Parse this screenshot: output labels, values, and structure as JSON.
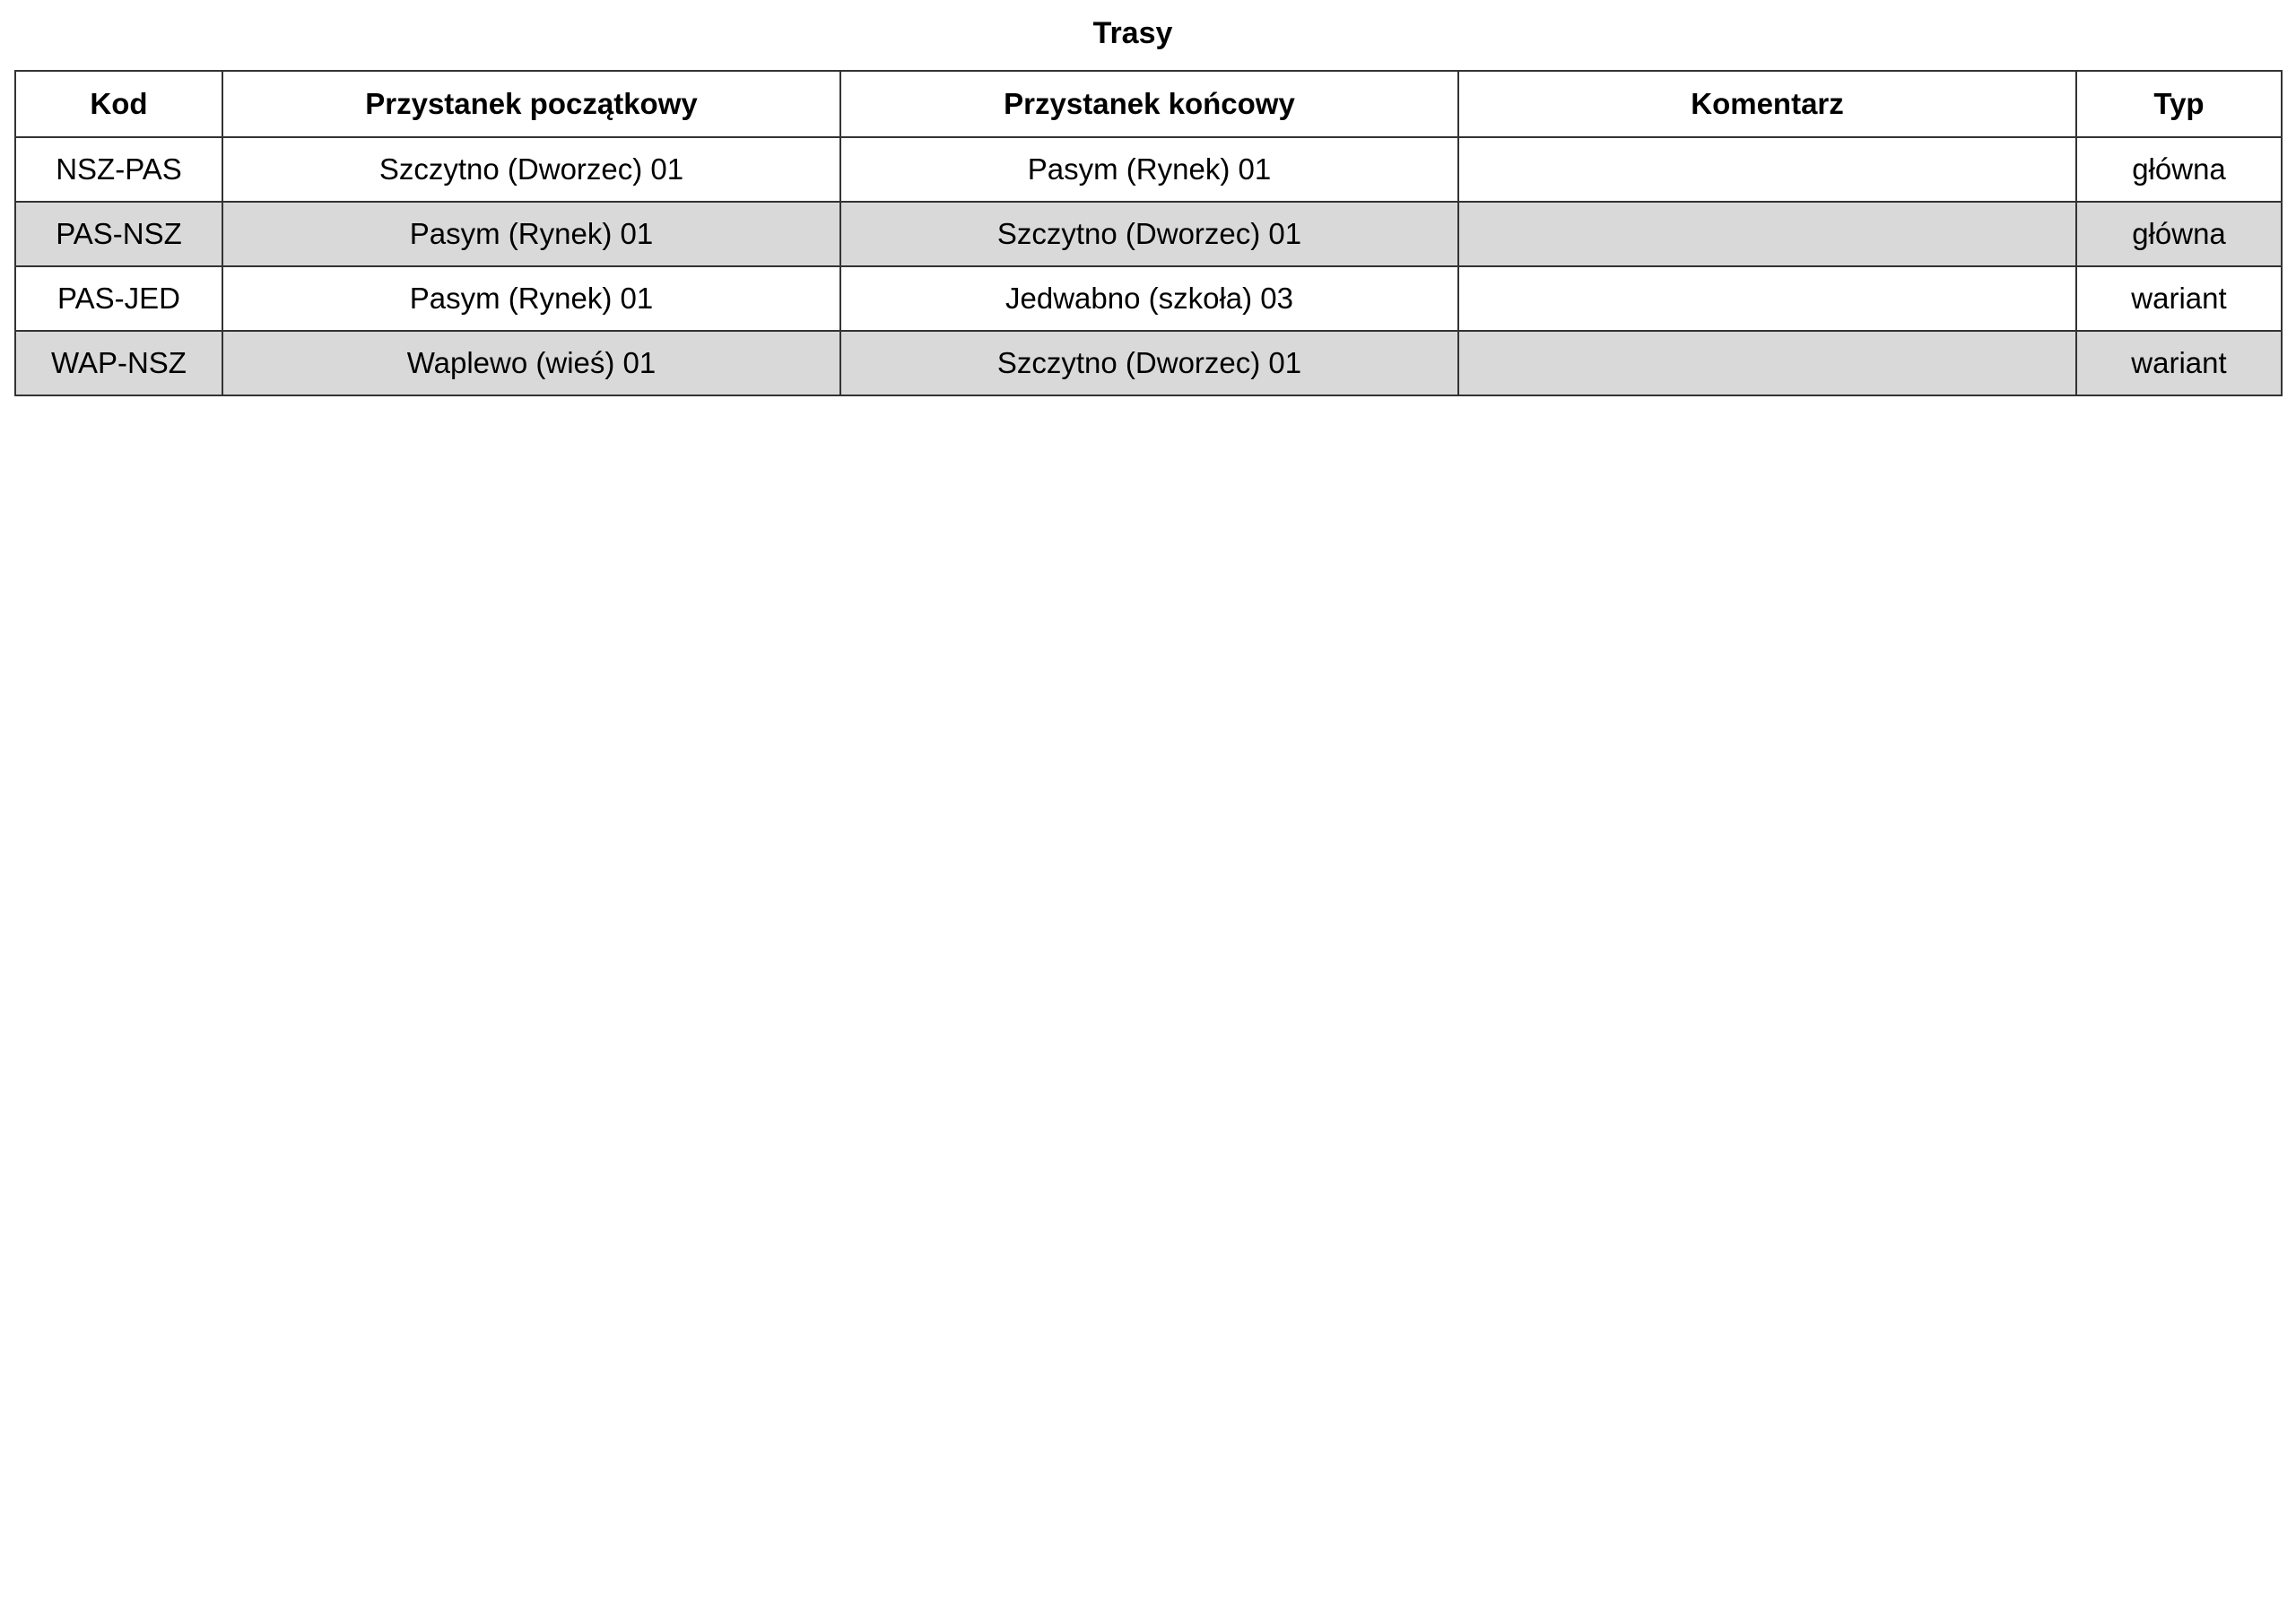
{
  "title": "Trasy",
  "table": {
    "headers": [
      "Kod",
      "Przystanek początkowy",
      "Przystanek końcowy",
      "Komentarz",
      "Typ"
    ],
    "rows": [
      [
        "NSZ-PAS",
        "Szczytno (Dworzec) 01",
        "Pasym (Rynek) 01",
        "",
        "główna"
      ],
      [
        "PAS-NSZ",
        "Pasym (Rynek) 01",
        "Szczytno (Dworzec) 01",
        "",
        "główna"
      ],
      [
        "PAS-JED",
        "Pasym (Rynek) 01",
        "Jedwabno (szkoła) 03",
        "",
        "wariant"
      ],
      [
        "WAP-NSZ",
        "Waplewo (wieś) 01",
        "Szczytno (Dworzec) 01",
        "",
        "wariant"
      ]
    ]
  },
  "colors": {
    "alt_row": "#d9d9d9",
    "border": "#333333"
  }
}
